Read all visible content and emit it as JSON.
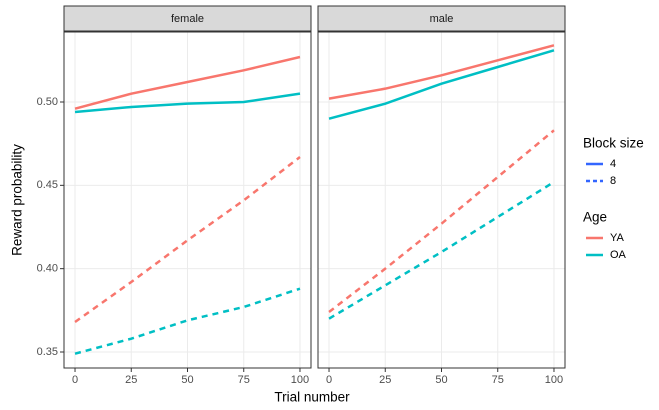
{
  "chart_data": {
    "type": "line",
    "xlabel": "Trial number",
    "ylabel": "Reward probability",
    "xlim": [
      -4.9,
      104.9
    ],
    "ylim": [
      0.3404,
      0.542
    ],
    "xticks": [
      0,
      25,
      50,
      75,
      100
    ],
    "yticks": [
      0.35,
      {
        "value": 0.4,
        "label": "0.40"
      },
      0.45,
      {
        "value": 0.5,
        "label": "0.50"
      }
    ],
    "grid": true,
    "x": [
      0,
      25,
      50,
      75,
      100
    ],
    "legend": [
      {
        "title": "Block size",
        "items": [
          {
            "label": "4",
            "dash": "solid"
          },
          {
            "label": "8",
            "dash": "dashed"
          }
        ]
      },
      {
        "title": "Age",
        "items": [
          {
            "label": "YA",
            "color": "#f8766d"
          },
          {
            "label": "OA",
            "color": "#00bfc4"
          }
        ]
      }
    ],
    "panels": [
      {
        "title": "female",
        "series": [
          {
            "color": "#f8766d",
            "dash": "solid",
            "values": [
              0.496,
              0.505,
              0.512,
              0.519,
              0.527
            ]
          },
          {
            "color": "#00bfc4",
            "dash": "solid",
            "values": [
              0.494,
              0.497,
              0.499,
              0.5,
              0.505
            ]
          },
          {
            "color": "#f8766d",
            "dash": "dashed",
            "values": [
              0.368,
              0.392,
              0.417,
              0.441,
              0.467
            ]
          },
          {
            "color": "#00bfc4",
            "dash": "dashed",
            "values": [
              0.349,
              0.358,
              0.369,
              0.377,
              0.388
            ]
          }
        ]
      },
      {
        "title": "male",
        "series": [
          {
            "color": "#f8766d",
            "dash": "solid",
            "values": [
              0.502,
              0.508,
              0.516,
              0.525,
              0.534
            ]
          },
          {
            "color": "#00bfc4",
            "dash": "solid",
            "values": [
              0.49,
              0.499,
              0.511,
              0.521,
              0.531
            ]
          },
          {
            "color": "#f8766d",
            "dash": "dashed",
            "values": [
              0.374,
              0.4,
              0.427,
              0.455,
              0.483
            ]
          },
          {
            "color": "#00bfc4",
            "dash": "dashed",
            "values": [
              0.37,
              0.39,
              0.41,
              0.431,
              0.452
            ]
          }
        ]
      }
    ]
  }
}
